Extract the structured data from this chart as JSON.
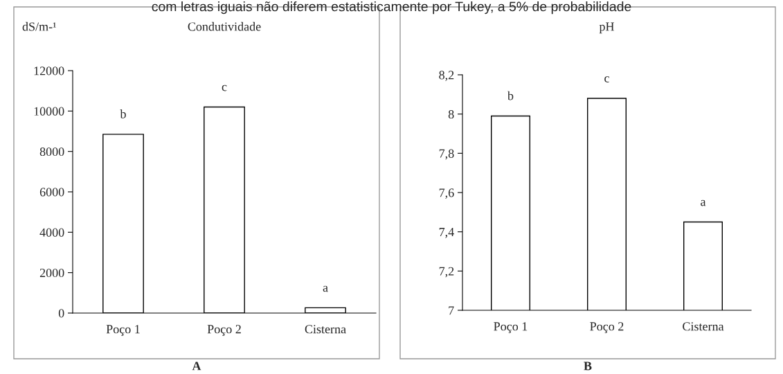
{
  "chart_data": [
    {
      "type": "bar",
      "title": "Condutividade",
      "subtitle": "com letras iguais não diferem estatisticamente por Tukey, a 5% de probabilidade",
      "ylabel": "dS/m-¹",
      "categories": [
        "Poço 1",
        "Poço 2",
        "Cisterna"
      ],
      "values": [
        8850,
        10200,
        260
      ],
      "color": "#ffffff",
      "ylim": [
        0,
        12000
      ],
      "yticks": [
        0,
        2000,
        4000,
        6000,
        8000,
        10000,
        12000
      ],
      "annotations": [
        {
          "text": "b",
          "x": "Poço 1",
          "y": 8850
        },
        {
          "text": "c",
          "x": "Poço 2",
          "y": 10200
        },
        {
          "text": "a",
          "x": "Cisterna",
          "y": 260
        },
        "A"
      ]
    },
    {
      "type": "bar",
      "title": "pH",
      "categories": [
        "Poço 1",
        "Poço 2",
        "Cisterna"
      ],
      "values": [
        7.99,
        8.08,
        7.45
      ],
      "color": "#ffffff",
      "ylim": [
        7,
        8.2
      ],
      "yticks": [
        7,
        {
          "value": 7.2,
          "label": "7,2"
        },
        {
          "value": 7.4,
          "label": "7,4"
        },
        {
          "value": 7.6,
          "label": "7,6"
        },
        {
          "value": 7.8,
          "label": "7,8"
        },
        8,
        {
          "value": 8.2,
          "label": "8,2"
        }
      ],
      "annotations": [
        {
          "text": "b",
          "x": "Poço 1",
          "y": 7.99
        },
        {
          "text": "c",
          "x": "Poço 2",
          "y": 8.08
        },
        {
          "text": "a",
          "x": "Cisterna",
          "y": 7.45
        },
        "B"
      ]
    }
  ]
}
